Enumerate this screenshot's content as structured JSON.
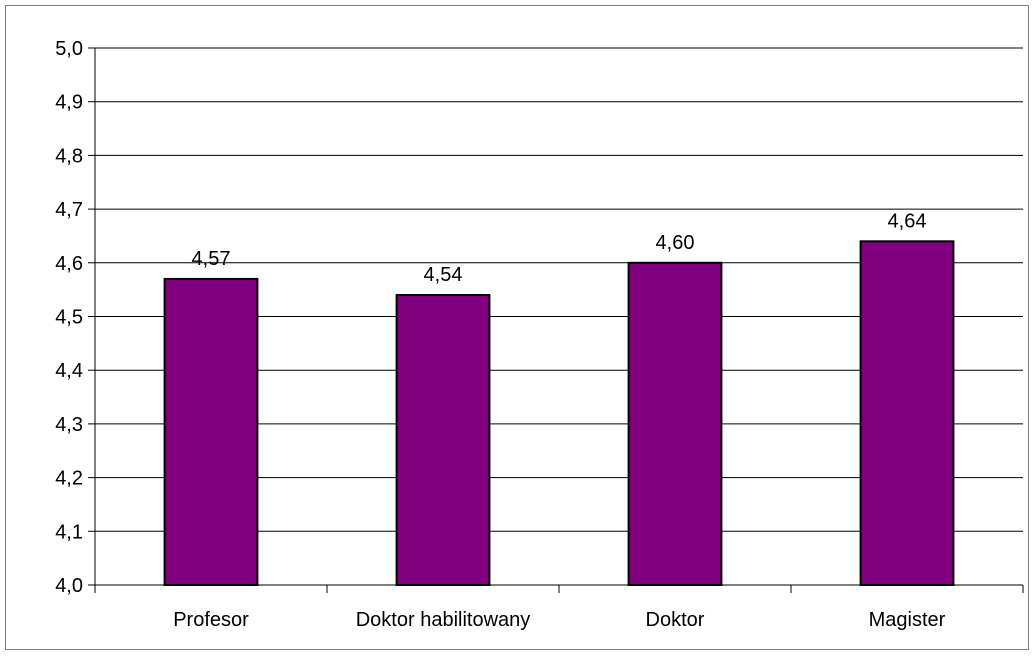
{
  "chart_data": {
    "type": "bar",
    "categories": [
      "Profesor",
      "Doktor habilitowany",
      "Doktor",
      "Magister"
    ],
    "values": [
      4.57,
      4.54,
      4.6,
      4.64
    ],
    "data_labels": [
      "4,57",
      "4,54",
      "4,60",
      "4,64"
    ],
    "ylim": [
      4.0,
      5.0
    ],
    "yticks": [
      "4,0",
      "4,1",
      "4,2",
      "4,3",
      "4,4",
      "4,5",
      "4,6",
      "4,7",
      "4,8",
      "4,9",
      "5,0"
    ],
    "grid": true,
    "legend": "none",
    "bar_color": "#800080",
    "bar_outline": "#000000"
  }
}
